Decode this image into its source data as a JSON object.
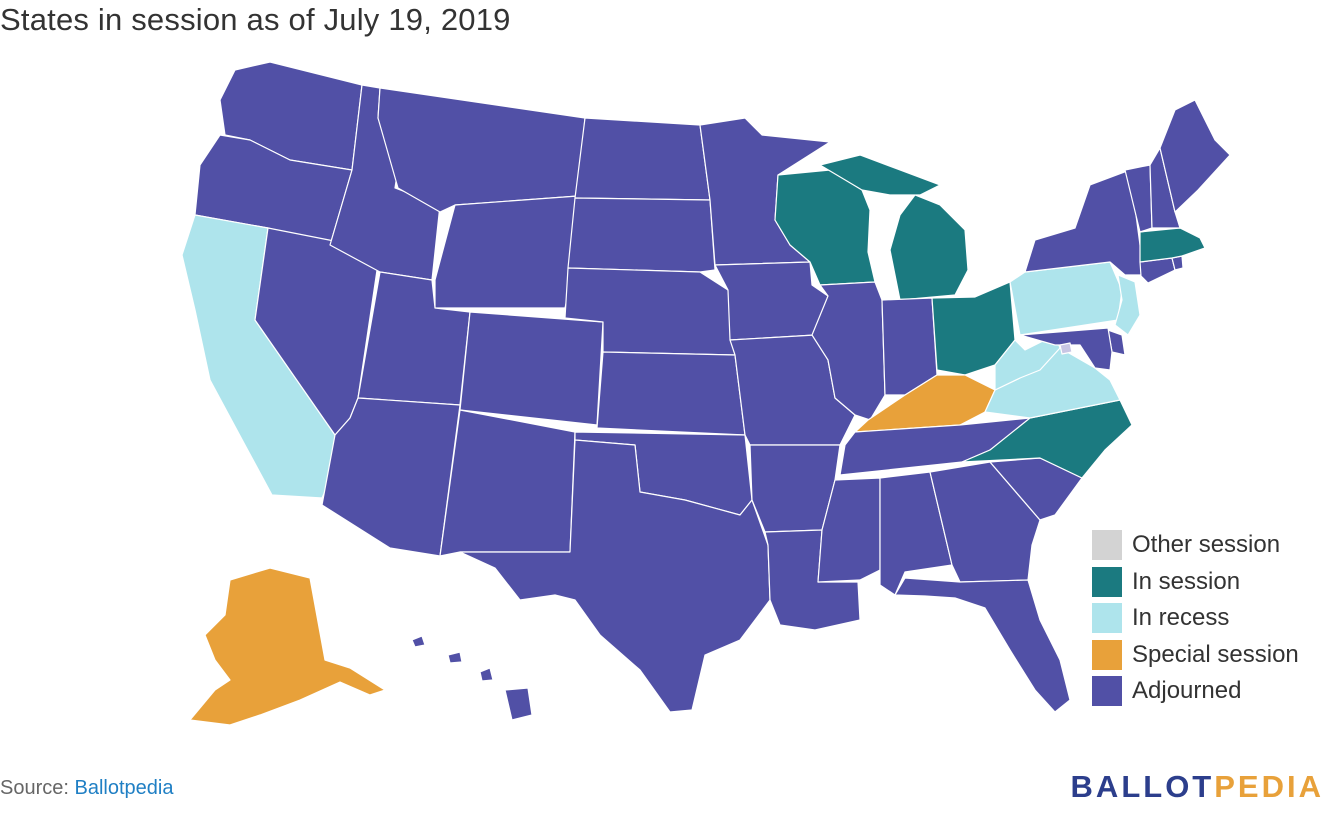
{
  "title": "States in session as of July 19, 2019",
  "legend": [
    {
      "label": "Other session",
      "status": "other"
    },
    {
      "label": "In session",
      "status": "in_session"
    },
    {
      "label": "In recess",
      "status": "in_recess"
    },
    {
      "label": "Special session",
      "status": "special"
    },
    {
      "label": "Adjourned",
      "status": "adjourned"
    }
  ],
  "colors": {
    "other": "#d3d3d3",
    "in_session": "#1b7a80",
    "in_recess": "#aee4ec",
    "special": "#e8a13a",
    "adjourned": "#5150a6",
    "dc": "#c8c6e4"
  },
  "state_status": {
    "WA": "adjourned",
    "OR": "adjourned",
    "CA": "in_recess",
    "NV": "adjourned",
    "ID": "adjourned",
    "MT": "adjourned",
    "WY": "adjourned",
    "UT": "adjourned",
    "AZ": "adjourned",
    "CO": "adjourned",
    "NM": "adjourned",
    "ND": "adjourned",
    "SD": "adjourned",
    "NE": "adjourned",
    "KS": "adjourned",
    "OK": "adjourned",
    "TX": "adjourned",
    "MN": "adjourned",
    "IA": "adjourned",
    "MO": "adjourned",
    "AR": "adjourned",
    "LA": "adjourned",
    "WI": "in_session",
    "IL": "adjourned",
    "MI": "in_session",
    "IN": "adjourned",
    "OH": "in_session",
    "KY": "special",
    "TN": "adjourned",
    "MS": "adjourned",
    "AL": "adjourned",
    "GA": "adjourned",
    "FL": "adjourned",
    "SC": "adjourned",
    "NC": "in_session",
    "VA": "in_recess",
    "WV": "in_recess",
    "PA": "in_recess",
    "NY": "adjourned",
    "NJ": "in_recess",
    "DE": "adjourned",
    "MD": "adjourned",
    "DC": "dc",
    "CT": "adjourned",
    "RI": "adjourned",
    "MA": "in_session",
    "VT": "adjourned",
    "NH": "adjourned",
    "ME": "adjourned",
    "AK": "special",
    "HI": "adjourned"
  },
  "source": {
    "prefix": "Source:",
    "link": "Ballotpedia"
  },
  "logo": {
    "part1": "BALLOT",
    "part2": "PEDIA",
    "color1": "#2c3e8c",
    "color2": "#e8a13a"
  }
}
